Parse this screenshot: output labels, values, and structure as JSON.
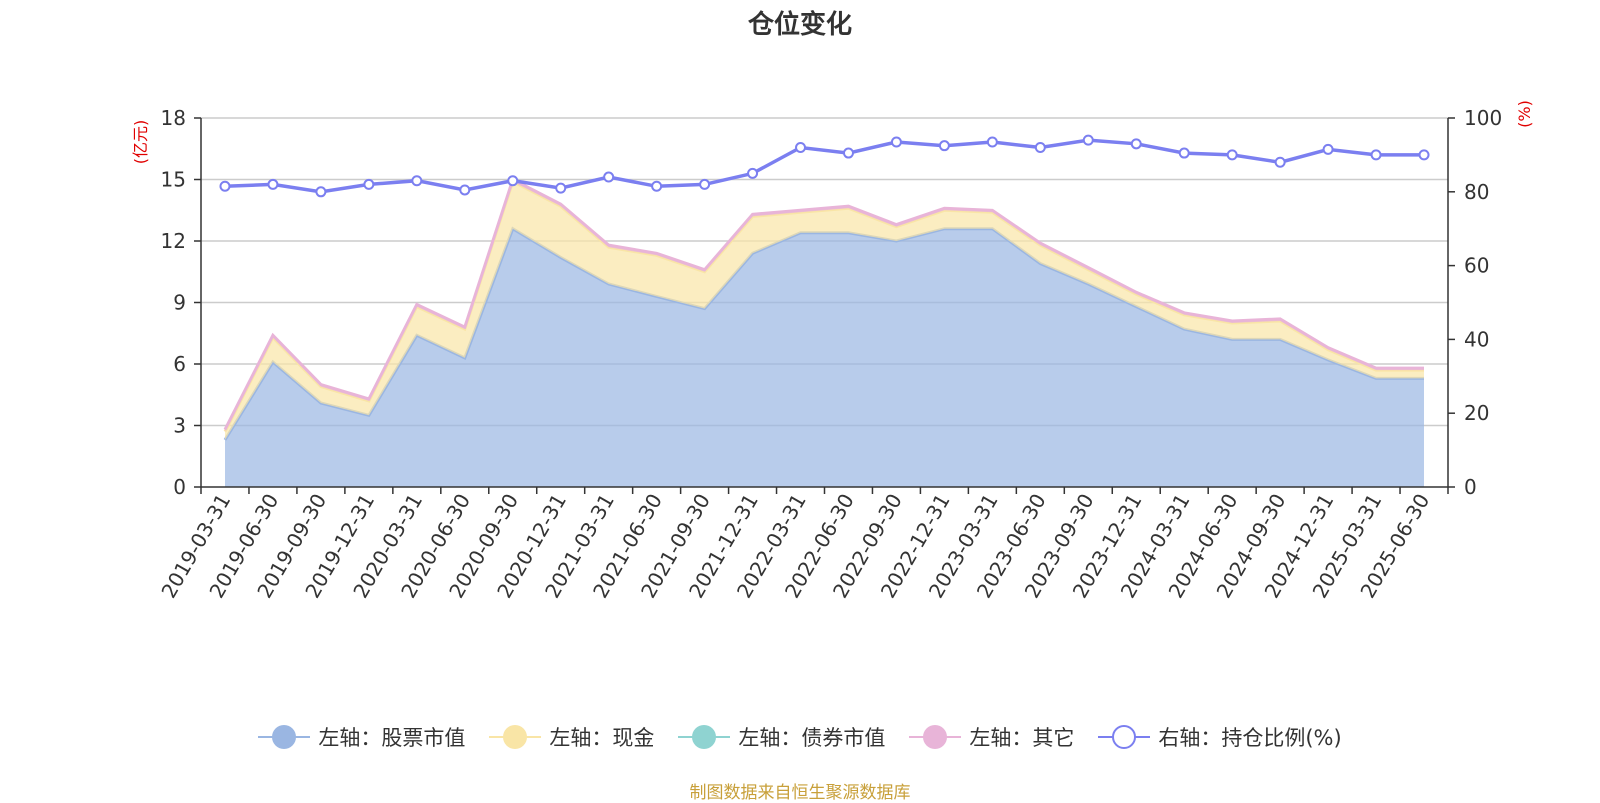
{
  "title": "仓位变化",
  "source": "制图数据来自恒生聚源数据库",
  "chart_data": {
    "type": "area",
    "title": "仓位变化",
    "categories": [
      "2019-03-31",
      "2019-06-30",
      "2019-09-30",
      "2019-12-31",
      "2020-03-31",
      "2020-06-30",
      "2020-09-30",
      "2020-12-31",
      "2021-03-31",
      "2021-06-30",
      "2021-09-30",
      "2021-12-31",
      "2022-03-31",
      "2022-06-30",
      "2022-09-30",
      "2022-12-31",
      "2023-03-31",
      "2023-06-30",
      "2023-09-30",
      "2023-12-31",
      "2024-03-31",
      "2024-06-30",
      "2024-09-30",
      "2024-12-31",
      "2025-03-31",
      "2025-06-30"
    ],
    "left_axis": {
      "unit": "(亿元)",
      "ylim": [
        0,
        18
      ],
      "ticks": [
        0,
        3,
        6,
        9,
        12,
        15,
        18
      ]
    },
    "right_axis": {
      "unit": "(%)",
      "ylim": [
        0,
        100
      ],
      "ticks": [
        0,
        20,
        40,
        60,
        80,
        100
      ]
    },
    "grid": true,
    "legend_position": "bottom",
    "series": [
      {
        "name": "左轴：股票市值",
        "axis": "left",
        "stack": "left",
        "color": "#9ab6e2",
        "values": [
          2.3,
          6.1,
          4.1,
          3.5,
          7.4,
          6.3,
          12.6,
          11.2,
          9.9,
          9.3,
          8.7,
          11.4,
          12.4,
          12.4,
          12.0,
          12.6,
          12.6,
          10.9,
          9.9,
          8.8,
          7.7,
          7.2,
          7.2,
          6.2,
          5.3,
          5.3
        ]
      },
      {
        "name": "左轴：现金",
        "axis": "left",
        "stack": "left",
        "color": "#f9e5a6",
        "values": [
          0.4,
          1.2,
          0.8,
          0.7,
          1.4,
          1.4,
          2.3,
          2.5,
          1.8,
          2.0,
          1.8,
          1.8,
          1.0,
          1.2,
          0.7,
          0.9,
          0.8,
          0.9,
          0.7,
          0.6,
          0.7,
          0.8,
          0.9,
          0.5,
          0.4,
          0.4
        ]
      },
      {
        "name": "左轴：债券市值",
        "axis": "left",
        "stack": "left",
        "color": "#8fd3d1",
        "values": [
          0,
          0,
          0,
          0,
          0,
          0,
          0,
          0,
          0,
          0,
          0,
          0,
          0,
          0,
          0,
          0,
          0,
          0,
          0,
          0,
          0,
          0,
          0,
          0,
          0,
          0
        ]
      },
      {
        "name": "左轴：其它",
        "axis": "left",
        "stack": "left",
        "color": "#e8b4d8",
        "values": [
          0.1,
          0.1,
          0.1,
          0.1,
          0.1,
          0.1,
          0.1,
          0.1,
          0.1,
          0.1,
          0.1,
          0.1,
          0.1,
          0.1,
          0.1,
          0.1,
          0.1,
          0.1,
          0.1,
          0.1,
          0.1,
          0.1,
          0.1,
          0.1,
          0.1,
          0.1
        ]
      },
      {
        "name": "右轴：持仓比例(%)",
        "axis": "right",
        "type": "line",
        "color": "#7b7ff0",
        "values": [
          81.5,
          82,
          80,
          82,
          83,
          80.5,
          83,
          81,
          84,
          81.5,
          82,
          85,
          92,
          90.5,
          93.5,
          92.5,
          93.5,
          92,
          94,
          93,
          90.5,
          90,
          88,
          91.5,
          90,
          90
        ]
      }
    ]
  }
}
